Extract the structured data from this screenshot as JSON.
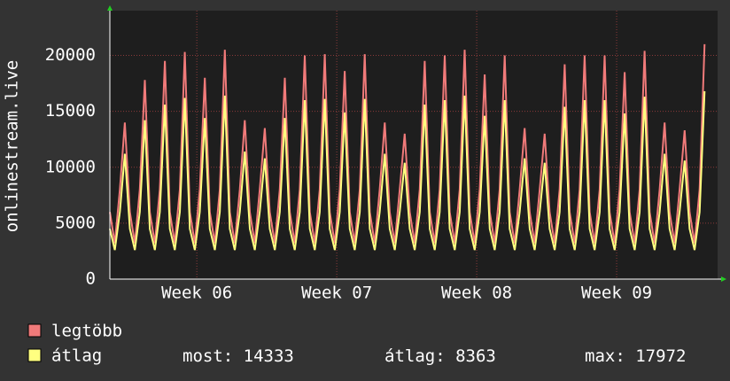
{
  "chart_data": {
    "type": "line",
    "ylabel": "onlinestream.live",
    "x": [
      0,
      0.25,
      0.5,
      0.75,
      1,
      1.25,
      1.5,
      1.75,
      2,
      2.25,
      2.5,
      2.75,
      3,
      3.25,
      3.5,
      3.75,
      4,
      4.25,
      4.5,
      4.75,
      5,
      5.25,
      5.5,
      5.75,
      6,
      6.25,
      6.5,
      6.75,
      7,
      7.25,
      7.5,
      7.75,
      8,
      8.25,
      8.5,
      8.75,
      9,
      9.25,
      9.5,
      9.75,
      10,
      10.25,
      10.5,
      10.75,
      11,
      11.25,
      11.5,
      11.75,
      12,
      12.25,
      12.5,
      12.75,
      13,
      13.25,
      13.5,
      13.75,
      14,
      14.25,
      14.5,
      14.75,
      15,
      15.25,
      15.5,
      15.75,
      16,
      16.25,
      16.5,
      16.75,
      17,
      17.25,
      17.5,
      17.75,
      18,
      18.25,
      18.5,
      18.75,
      19,
      19.25,
      19.5,
      19.75,
      20,
      20.25,
      20.5,
      20.75,
      21,
      21.25,
      21.5,
      21.75,
      22,
      22.25,
      22.5,
      22.75,
      23,
      23.25,
      23.5,
      23.75,
      24,
      24.25,
      24.5,
      24.75,
      25,
      25.25,
      25.5,
      25.75,
      26,
      26.25,
      26.5,
      26.75,
      27,
      27.25,
      27.5,
      27.75,
      28,
      28.25,
      28.5,
      28.75,
      29,
      29.25,
      29.5,
      29.75
    ],
    "series": [
      {
        "name": "legtöbb",
        "color": "#f07a7a",
        "values": [
          6000,
          3200,
          8000,
          14000,
          6000,
          3200,
          8000,
          17800,
          6000,
          3200,
          8000,
          19500,
          6000,
          3200,
          8000,
          20300,
          6000,
          3200,
          8000,
          18000,
          6000,
          3200,
          8000,
          20500,
          6000,
          3200,
          8000,
          14200,
          6000,
          3200,
          8000,
          13500,
          6000,
          3200,
          8000,
          18000,
          6000,
          3200,
          8000,
          20000,
          6000,
          3200,
          8000,
          20100,
          6000,
          3200,
          8000,
          18600,
          6000,
          3200,
          8000,
          20100,
          6000,
          3200,
          8000,
          14000,
          6000,
          3200,
          8000,
          13000,
          6000,
          3200,
          8000,
          19500,
          6000,
          3200,
          8000,
          20000,
          6000,
          3200,
          8000,
          20500,
          6000,
          3200,
          8000,
          18300,
          6000,
          3200,
          8000,
          20000,
          6000,
          3200,
          8000,
          13500,
          6000,
          3200,
          8000,
          13000,
          6000,
          3200,
          8000,
          19200,
          6000,
          3200,
          8000,
          20000,
          6000,
          3200,
          8000,
          20000,
          6000,
          3200,
          8000,
          18500,
          6000,
          3200,
          8000,
          20400,
          6000,
          3200,
          8000,
          14000,
          6000,
          3200,
          8000,
          13300,
          6000,
          3200,
          8000,
          21000
        ]
      },
      {
        "name": "átlag",
        "color": "#ffff80",
        "values": [
          4500,
          2600,
          6000,
          11200,
          4500,
          2600,
          6000,
          14200,
          4500,
          2600,
          6000,
          15600,
          4500,
          2600,
          6000,
          16200,
          4500,
          2600,
          6000,
          14400,
          4500,
          2600,
          6000,
          16400,
          4500,
          2600,
          6000,
          11400,
          4500,
          2600,
          6000,
          10800,
          4500,
          2600,
          6000,
          14400,
          4500,
          2600,
          6000,
          16000,
          4500,
          2600,
          6000,
          16100,
          4500,
          2600,
          6000,
          14900,
          4500,
          2600,
          6000,
          16100,
          4500,
          2600,
          6000,
          11200,
          4500,
          2600,
          6000,
          10400,
          4500,
          2600,
          6000,
          15600,
          4500,
          2600,
          6000,
          16000,
          4500,
          2600,
          6000,
          16400,
          4500,
          2600,
          6000,
          14600,
          4500,
          2600,
          6000,
          16000,
          4500,
          2600,
          6000,
          10800,
          4500,
          2600,
          6000,
          10400,
          4500,
          2600,
          6000,
          15400,
          4500,
          2600,
          6000,
          16000,
          4500,
          2600,
          6000,
          16000,
          4500,
          2600,
          6000,
          14800,
          4500,
          2600,
          6000,
          16300,
          4500,
          2600,
          6000,
          11200,
          4500,
          2600,
          6000,
          10600,
          4500,
          2600,
          6000,
          16800
        ]
      }
    ],
    "xlim": [
      0,
      30.4
    ],
    "xticks": [
      {
        "value": 4.35,
        "label": "Week 06"
      },
      {
        "value": 11.35,
        "label": "Week 07"
      },
      {
        "value": 18.35,
        "label": "Week 08"
      },
      {
        "value": 25.35,
        "label": "Week 09"
      }
    ],
    "ylim": [
      0,
      24000
    ],
    "yticks": [
      0,
      5000,
      10000,
      15000,
      20000
    ],
    "grid": true,
    "stats": [
      {
        "label": "most:",
        "value": 14333
      },
      {
        "label": "átlag:",
        "value": 8363
      },
      {
        "label": "max:",
        "value": 17972
      }
    ]
  }
}
